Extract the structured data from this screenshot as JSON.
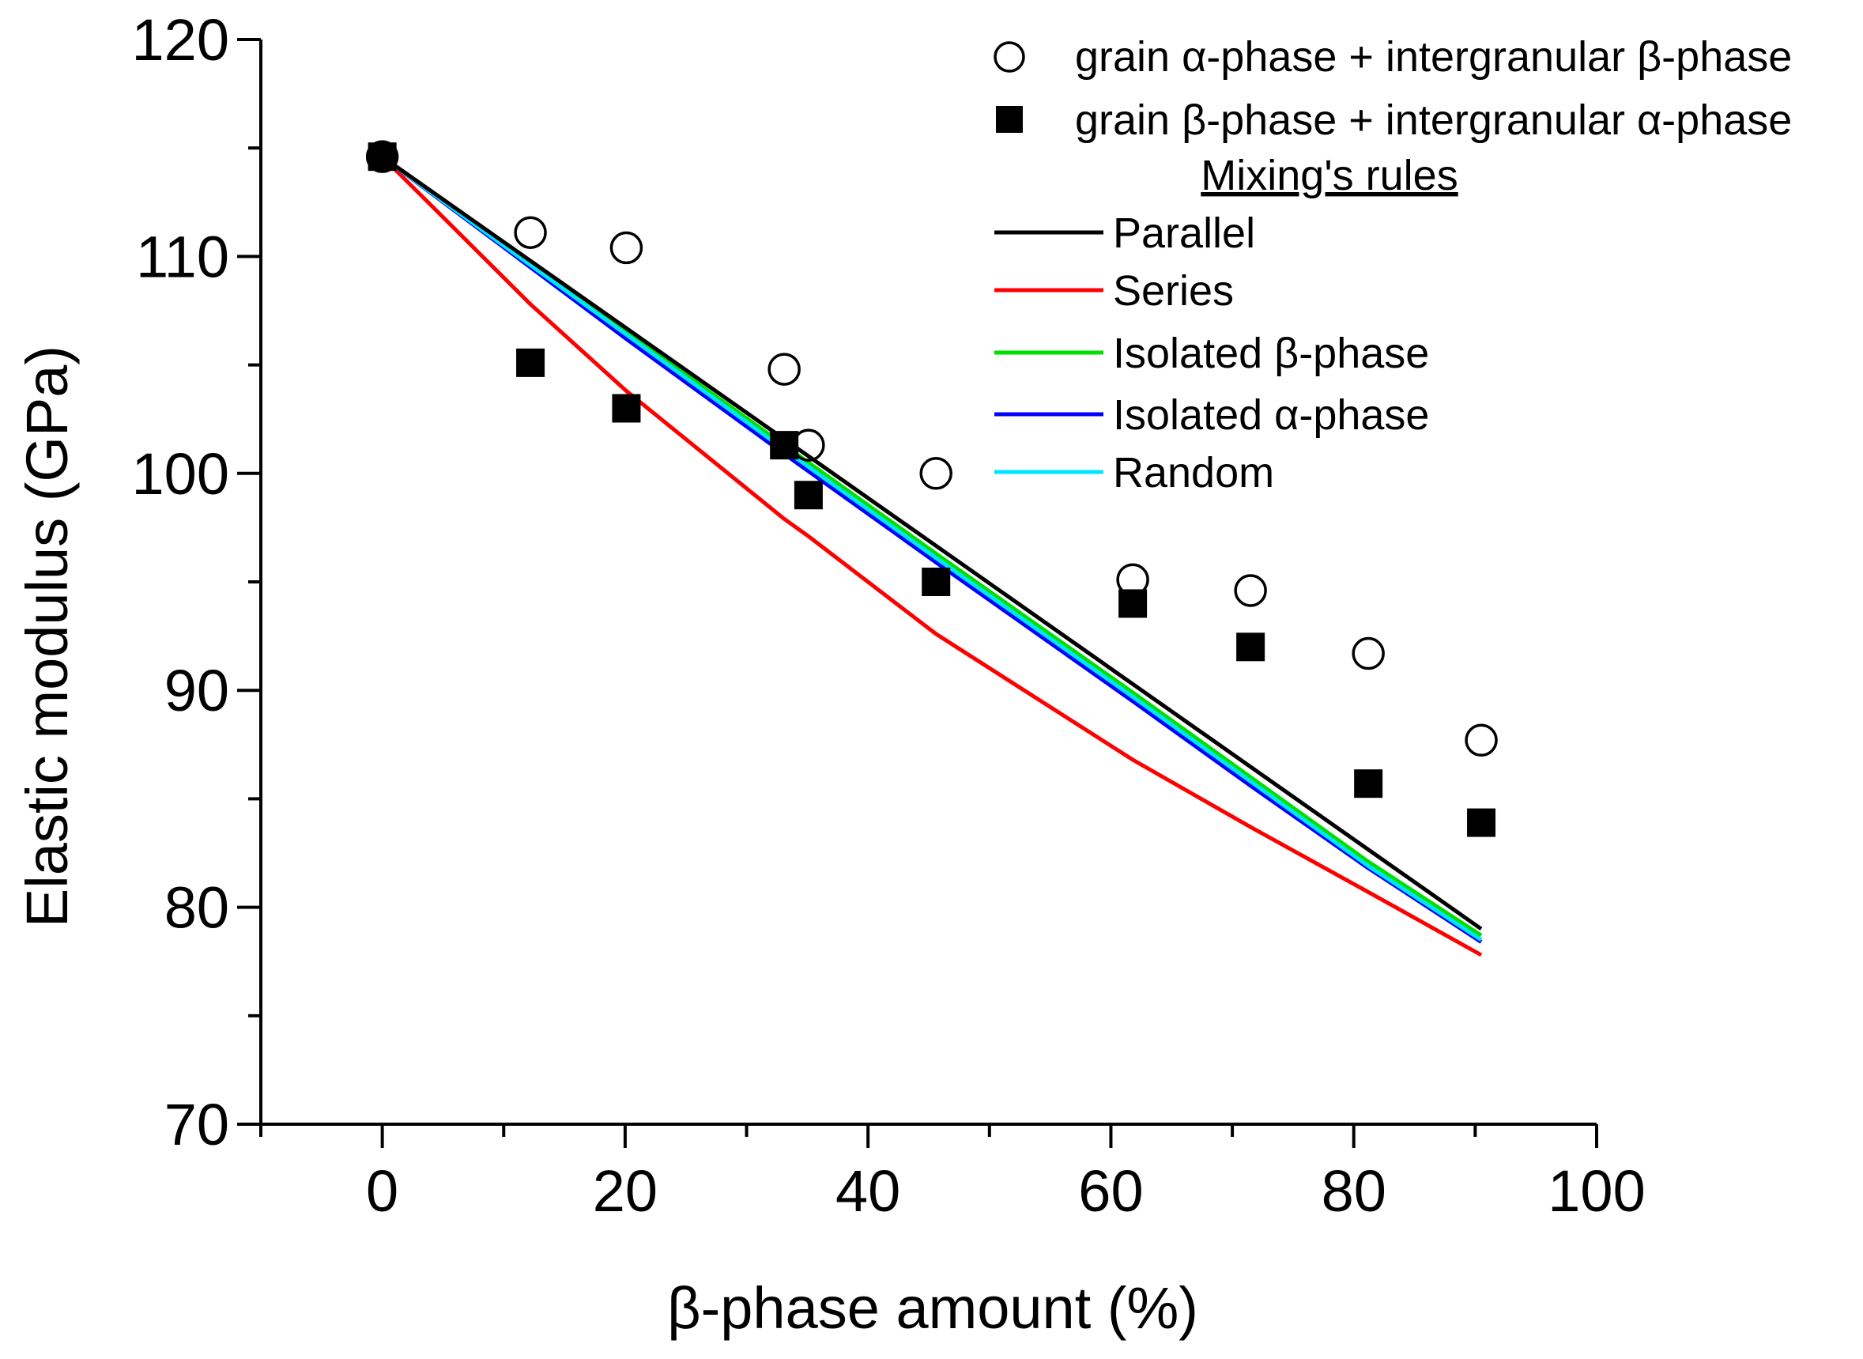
{
  "chart_data": {
    "type": "line",
    "xlabel": "β-phase amount (%)",
    "ylabel": "Elastic modulus (GPa)",
    "xlim": [
      -10,
      100
    ],
    "ylim": [
      70,
      120
    ],
    "x_ticks": [
      0,
      20,
      40,
      60,
      80,
      100
    ],
    "x_minor_ticks": [
      -10,
      10,
      30,
      50,
      70,
      90
    ],
    "y_ticks": [
      70,
      80,
      90,
      100,
      110,
      120
    ],
    "y_minor_ticks": [
      75,
      85,
      95,
      105,
      115
    ],
    "legend_position": "top-right",
    "legend_heading": "Mixing's rules",
    "scatter_series": [
      {
        "name": "grain α-phase + intergranular β-phase",
        "marker": "open-circle",
        "color": "#000000",
        "x": [
          0,
          12.2,
          20.1,
          33.1,
          35.1,
          45.6,
          61.8,
          71.5,
          81.2,
          90.5
        ],
        "y": [
          114.6,
          111.1,
          110.4,
          104.8,
          101.3,
          100.0,
          95.1,
          94.6,
          91.7,
          87.7
        ]
      },
      {
        "name": "grain β-phase + intergranular α-phase",
        "marker": "filled-square",
        "color": "#000000",
        "x": [
          0,
          12.2,
          20.1,
          33.1,
          35.1,
          45.6,
          61.8,
          71.5,
          81.2,
          90.5
        ],
        "y": [
          114.6,
          105.1,
          103.0,
          101.3,
          99.0,
          95.0,
          94.0,
          92.0,
          85.7,
          83.9
        ]
      }
    ],
    "line_series": [
      {
        "name": "Parallel",
        "color": "#000000",
        "x": [
          0,
          90.5
        ],
        "y": [
          114.6,
          79.0
        ]
      },
      {
        "name": "Series",
        "color": "#ff0000",
        "x": [
          0,
          12.2,
          20.1,
          33.1,
          35.1,
          45.6,
          61.8,
          71.5,
          81.2,
          90.5
        ],
        "y": [
          114.6,
          107.8,
          103.8,
          97.9,
          97.1,
          92.6,
          86.8,
          83.7,
          80.7,
          77.8
        ]
      },
      {
        "name": "Isolated β-phase",
        "color": "#00e000",
        "x": [
          0,
          12.2,
          20.1,
          33.1,
          35.1,
          45.6,
          61.8,
          71.5,
          81.2,
          90.5
        ],
        "y": [
          114.6,
          109.7,
          106.5,
          101.3,
          100.5,
          96.3,
          89.9,
          86.0,
          82.1,
          78.7
        ]
      },
      {
        "name": "Isolated α-phase",
        "color": "#0000ff",
        "x": [
          0,
          12.2,
          20.1,
          33.1,
          35.1,
          45.6,
          61.8,
          71.5,
          81.2,
          90.5
        ],
        "y": [
          114.6,
          109.5,
          106.2,
          100.9,
          100.1,
          95.9,
          89.5,
          85.6,
          81.8,
          78.4
        ]
      },
      {
        "name": "Random",
        "color": "#00e5ff",
        "x": [
          0,
          12.2,
          20.1,
          33.1,
          35.1,
          45.6,
          61.8,
          71.5,
          81.2,
          90.5
        ],
        "y": [
          114.6,
          109.6,
          106.4,
          101.1,
          100.3,
          96.1,
          89.7,
          85.8,
          81.9,
          78.5
        ]
      }
    ]
  }
}
